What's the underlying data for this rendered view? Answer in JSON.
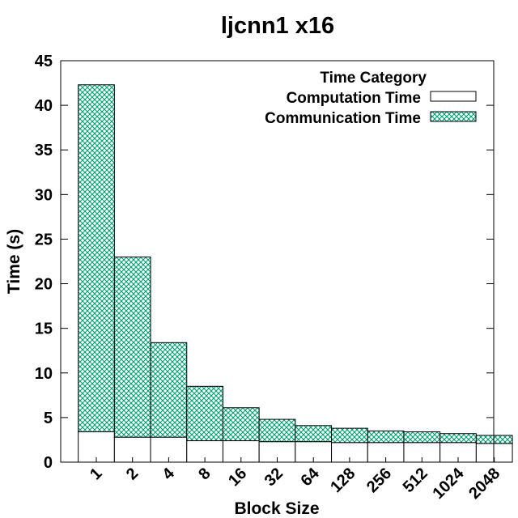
{
  "chart_data": {
    "type": "bar",
    "stacked": true,
    "title": "ljcnn1 x16",
    "xlabel": "Block Size",
    "ylabel": "Time (s)",
    "ylim": [
      0,
      45
    ],
    "yticks": [
      0,
      5,
      10,
      15,
      20,
      25,
      30,
      35,
      40,
      45
    ],
    "categories": [
      "1",
      "2",
      "4",
      "8",
      "16",
      "32",
      "64",
      "128",
      "256",
      "512",
      "1024",
      "2048"
    ],
    "legend": {
      "title": "Time Category",
      "position": "top-right"
    },
    "series": [
      {
        "name": "Computation Time",
        "values": [
          3.4,
          2.8,
          2.8,
          2.4,
          2.4,
          2.3,
          2.3,
          2.2,
          2.2,
          2.2,
          2.2,
          2.1
        ],
        "color": "#ffffff"
      },
      {
        "name": "Communication Time",
        "values": [
          38.9,
          20.2,
          10.6,
          6.1,
          3.7,
          2.5,
          1.8,
          1.6,
          1.3,
          1.2,
          1.0,
          0.9
        ],
        "color": "#009e73"
      }
    ],
    "grid": false
  }
}
